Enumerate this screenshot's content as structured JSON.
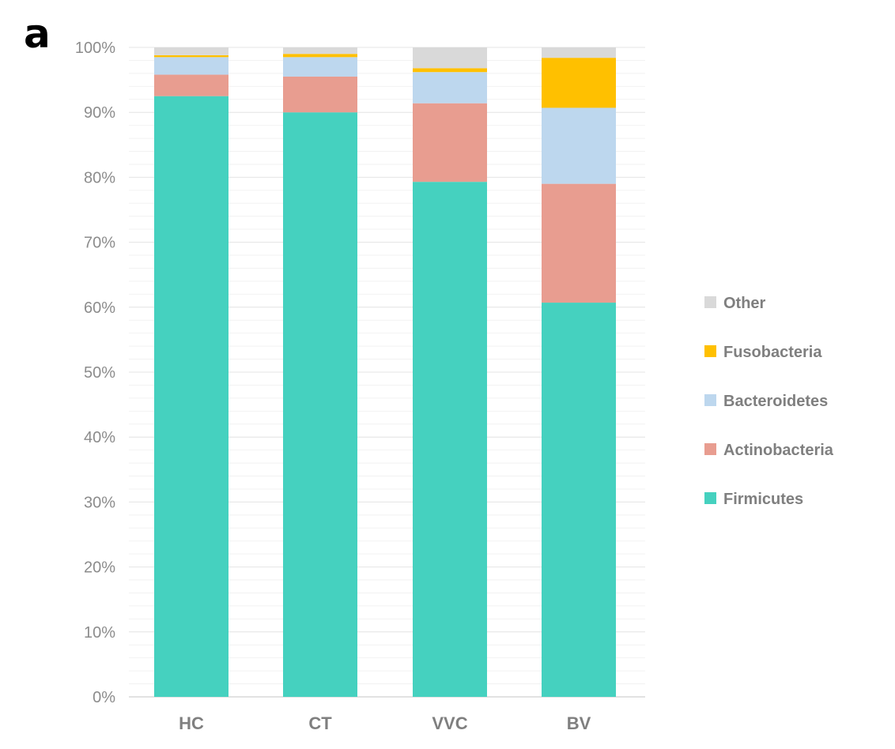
{
  "panel_label": "a",
  "chart_data": {
    "type": "bar",
    "stacked": true,
    "title": "",
    "xlabel": "",
    "ylabel": "",
    "ylim": [
      0,
      100
    ],
    "y_ticks": [
      "0%",
      "10%",
      "20%",
      "30%",
      "40%",
      "50%",
      "60%",
      "70%",
      "80%",
      "90%",
      "100%"
    ],
    "categories": [
      "HC",
      "CT",
      "VVC",
      "BV"
    ],
    "series": [
      {
        "name": "Firmicutes",
        "color": "#45d1bf",
        "values": [
          92.5,
          90.0,
          79.3,
          60.7
        ]
      },
      {
        "name": "Actinobacteria",
        "color": "#e89d90",
        "values": [
          3.3,
          5.5,
          12.1,
          18.3
        ]
      },
      {
        "name": "Bacteroidetes",
        "color": "#bdd7ee",
        "values": [
          2.7,
          3.0,
          4.8,
          11.7
        ]
      },
      {
        "name": "Fusobacteria",
        "color": "#ffc000",
        "values": [
          0.3,
          0.5,
          0.6,
          7.7
        ]
      },
      {
        "name": "Other",
        "color": "#d9d9d9",
        "values": [
          1.2,
          1.0,
          3.2,
          1.6
        ]
      }
    ],
    "legend": {
      "position": "right",
      "order": [
        "Other",
        "Fusobacteria",
        "Bacteroidetes",
        "Actinobacteria",
        "Firmicutes"
      ]
    },
    "grid": true
  }
}
